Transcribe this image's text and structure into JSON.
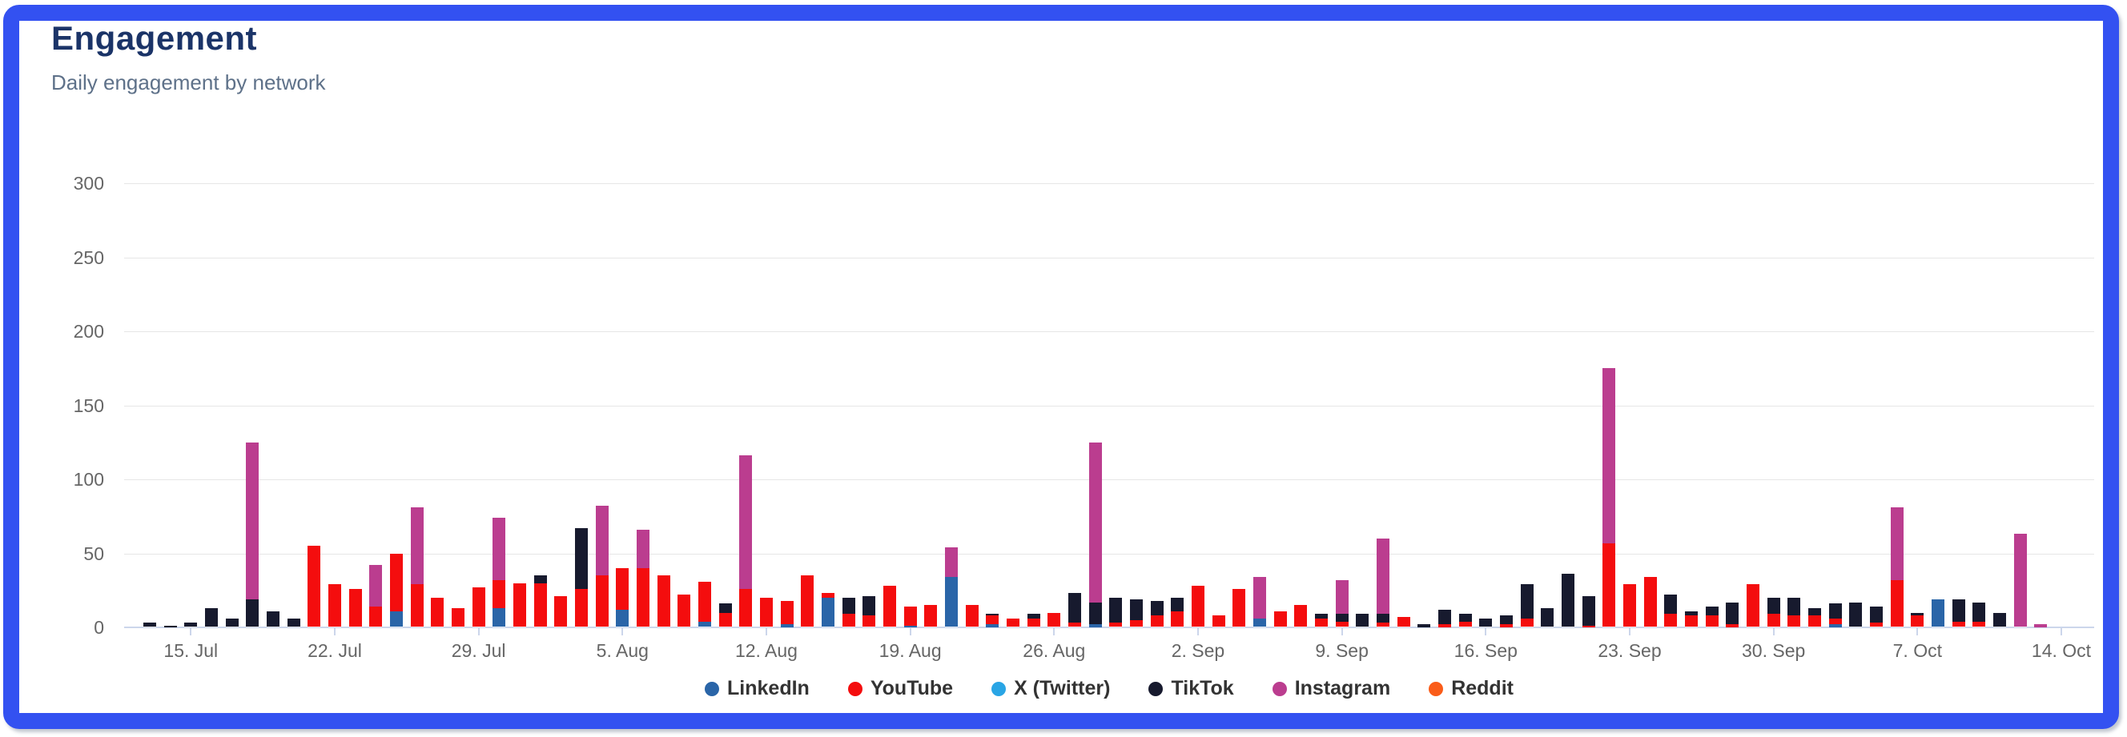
{
  "card": {
    "title": "Engagement",
    "subtitle": "Daily engagement by network"
  },
  "chart_data": {
    "type": "bar",
    "stacked": true,
    "title": "Engagement",
    "subtitle": "Daily engagement by network",
    "xlabel": "",
    "ylabel": "",
    "ylim": [
      0,
      300
    ],
    "yticks": [
      0,
      50,
      100,
      150,
      200,
      250,
      300
    ],
    "grid": true,
    "legend_position": "bottom",
    "xtick_labels": [
      "15. Jul",
      "22. Jul",
      "29. Jul",
      "5. Aug",
      "12. Aug",
      "19. Aug",
      "26. Aug",
      "2. Sep",
      "9. Sep",
      "16. Sep",
      "23. Sep",
      "30. Sep",
      "7. Oct",
      "14. Oct"
    ],
    "networks": [
      {
        "key": "li",
        "label": "LinkedIn",
        "color": "#2a65a8"
      },
      {
        "key": "yt",
        "label": "YouTube",
        "color": "#f40d0e"
      },
      {
        "key": "xt",
        "label": "X (Twitter)",
        "color": "#29a5e5"
      },
      {
        "key": "tt",
        "label": "TikTok",
        "color": "#171a2e"
      },
      {
        "key": "ig",
        "label": "Instagram",
        "color": "#bb3d8f"
      },
      {
        "key": "rd",
        "label": "Reddit",
        "color": "#fa5c19"
      }
    ],
    "series_stack_bottom_up": [
      "ig",
      "tt",
      "xt",
      "yt",
      "li",
      "rd"
    ],
    "days": [
      {
        "date": "13. Jul",
        "tt": 3
      },
      {
        "date": "14. Jul",
        "tt": 1
      },
      {
        "date": "15. Jul",
        "tt": 3
      },
      {
        "date": "16. Jul",
        "tt": 13
      },
      {
        "date": "17. Jul",
        "tt": 6
      },
      {
        "date": "18. Jul",
        "ig": 125,
        "tt": 19
      },
      {
        "date": "19. Jul",
        "tt": 11
      },
      {
        "date": "20. Jul",
        "tt": 6
      },
      {
        "date": "21. Jul",
        "tt": 11,
        "yt": 55
      },
      {
        "date": "22. Jul",
        "tt": 7,
        "yt": 29
      },
      {
        "date": "23. Jul",
        "tt": 1,
        "yt": 26
      },
      {
        "date": "24. Jul",
        "ig": 42,
        "tt": 9,
        "yt": 14
      },
      {
        "date": "25. Jul",
        "ig": 18,
        "tt": 7,
        "yt": 50,
        "li": 11
      },
      {
        "date": "26. Jul",
        "ig": 81,
        "tt": 8,
        "yt": 29
      },
      {
        "date": "27. Jul",
        "tt": 9,
        "yt": 20
      },
      {
        "date": "28. Jul",
        "tt": 5,
        "yt": 13
      },
      {
        "date": "29. Jul",
        "tt": 5,
        "yt": 27
      },
      {
        "date": "30. Jul",
        "ig": 74,
        "tt": 16,
        "yt": 32,
        "li": 13
      },
      {
        "date": "31. Jul",
        "tt": 5,
        "yt": 30
      },
      {
        "date": "1. Aug",
        "tt": 35,
        "yt": 30
      },
      {
        "date": "2. Aug",
        "tt": 11,
        "yt": 21
      },
      {
        "date": "3. Aug",
        "tt": 67,
        "yt": 26
      },
      {
        "date": "4. Aug",
        "ig": 82,
        "tt": 9,
        "yt": 35
      },
      {
        "date": "5. Aug",
        "tt": 9,
        "yt": 40,
        "li": 12
      },
      {
        "date": "6. Aug",
        "ig": 66,
        "tt": 14,
        "yt": 40
      },
      {
        "date": "7. Aug",
        "tt": 12,
        "yt": 35
      },
      {
        "date": "8. Aug",
        "tt": 9,
        "yt": 22
      },
      {
        "date": "9. Aug",
        "tt": 8,
        "yt": 31,
        "li": 4
      },
      {
        "date": "10. Aug",
        "ig": 12,
        "tt": 16,
        "yt": 10
      },
      {
        "date": "11. Aug",
        "ig": 116,
        "tt": 14,
        "yt": 26
      },
      {
        "date": "12. Aug",
        "tt": 12,
        "yt": 20
      },
      {
        "date": "13. Aug",
        "tt": 12,
        "yt": 18,
        "li": 2
      },
      {
        "date": "14. Aug",
        "tt": 13,
        "yt": 35
      },
      {
        "date": "15. Aug",
        "tt": 17,
        "yt": 23,
        "li": 20
      },
      {
        "date": "16. Aug",
        "tt": 20,
        "yt": 9
      },
      {
        "date": "17. Aug",
        "tt": 21,
        "yt": 8
      },
      {
        "date": "18. Aug",
        "ig": 17,
        "tt": 14,
        "yt": 28
      },
      {
        "date": "19. Aug",
        "tt": 5,
        "yt": 14,
        "li": 1
      },
      {
        "date": "20. Aug",
        "tt": 10,
        "yt": 15
      },
      {
        "date": "21. Aug",
        "ig": 54,
        "tt": 9,
        "xt": 2,
        "yt": 23,
        "li": 34
      },
      {
        "date": "22. Aug",
        "tt": 5,
        "yt": 15
      },
      {
        "date": "23. Aug",
        "tt": 9,
        "yt": 8,
        "li": 2
      },
      {
        "date": "24. Aug",
        "tt": 3,
        "yt": 6
      },
      {
        "date": "25. Aug",
        "tt": 9,
        "yt": 6
      },
      {
        "date": "26. Aug",
        "tt": 1,
        "yt": 10
      },
      {
        "date": "27. Aug",
        "tt": 23,
        "yt": 3
      },
      {
        "date": "28. Aug",
        "ig": 125,
        "tt": 17,
        "li": 2
      },
      {
        "date": "29. Aug",
        "tt": 20,
        "yt": 3
      },
      {
        "date": "30. Aug",
        "tt": 19,
        "yt": 5
      },
      {
        "date": "31. Aug",
        "tt": 18,
        "yt": 8
      },
      {
        "date": "1. Sep",
        "tt": 20,
        "yt": 11
      },
      {
        "date": "2. Sep",
        "ig": 16,
        "tt": 7,
        "yt": 28
      },
      {
        "date": "3. Sep",
        "tt": 4,
        "yt": 8
      },
      {
        "date": "4. Sep",
        "tt": 8,
        "yt": 26
      },
      {
        "date": "5. Sep",
        "ig": 34,
        "tt": 5,
        "yt": 6,
        "li": 6
      },
      {
        "date": "6. Sep",
        "tt": 8,
        "yt": 11
      },
      {
        "date": "7. Sep",
        "tt": 1,
        "yt": 15
      },
      {
        "date": "8. Sep",
        "tt": 9,
        "yt": 6
      },
      {
        "date": "9. Sep",
        "ig": 32,
        "tt": 9,
        "yt": 4
      },
      {
        "date": "10. Sep",
        "tt": 9
      },
      {
        "date": "11. Sep",
        "ig": 60,
        "tt": 9,
        "yt": 3
      },
      {
        "date": "12. Sep",
        "tt": 5,
        "yt": 7
      },
      {
        "date": "13. Sep",
        "tt": 2
      },
      {
        "date": "14. Sep",
        "tt": 12,
        "yt": 2
      },
      {
        "date": "15. Sep",
        "tt": 9,
        "yt": 4
      },
      {
        "date": "16. Sep",
        "tt": 6
      },
      {
        "date": "17. Sep",
        "tt": 8,
        "yt": 2
      },
      {
        "date": "18. Sep",
        "tt": 29,
        "yt": 6
      },
      {
        "date": "19. Sep",
        "tt": 13
      },
      {
        "date": "20. Sep",
        "tt": 36
      },
      {
        "date": "21. Sep",
        "tt": 21,
        "yt": 1
      },
      {
        "date": "22. Sep",
        "ig": 175,
        "tt": 25,
        "yt": 57
      },
      {
        "date": "23. Sep",
        "tt": 19,
        "yt": 29
      },
      {
        "date": "24. Sep",
        "tt": 20,
        "yt": 34
      },
      {
        "date": "25. Sep",
        "tt": 22,
        "yt": 9
      },
      {
        "date": "26. Sep",
        "tt": 11,
        "yt": 8
      },
      {
        "date": "27. Sep",
        "tt": 14,
        "yt": 8
      },
      {
        "date": "28. Sep",
        "tt": 17,
        "yt": 2
      },
      {
        "date": "29. Sep",
        "tt": 14,
        "yt": 29
      },
      {
        "date": "30. Sep",
        "tt": 20,
        "xt": 1,
        "yt": 9
      },
      {
        "date": "1. Oct",
        "tt": 20,
        "yt": 8
      },
      {
        "date": "2. Oct",
        "tt": 13,
        "yt": 8
      },
      {
        "date": "3. Oct",
        "tt": 16,
        "xt": 1,
        "yt": 6,
        "li": 2
      },
      {
        "date": "4. Oct",
        "tt": 17
      },
      {
        "date": "5. Oct",
        "tt": 14,
        "xt": 1,
        "yt": 3
      },
      {
        "date": "6. Oct",
        "ig": 81,
        "tt": 5,
        "yt": 32
      },
      {
        "date": "7. Oct",
        "tt": 10,
        "yt": 8
      },
      {
        "date": "8. Oct",
        "tt": 10,
        "yt": 9,
        "li": 19
      },
      {
        "date": "9. Oct",
        "tt": 19,
        "yt": 4
      },
      {
        "date": "10. Oct",
        "tt": 17,
        "yt": 4
      },
      {
        "date": "11. Oct",
        "tt": 10
      },
      {
        "date": "12. Oct",
        "ig": 63
      },
      {
        "date": "13. Oct",
        "ig": 2
      },
      {
        "date": "14. Oct"
      }
    ]
  }
}
